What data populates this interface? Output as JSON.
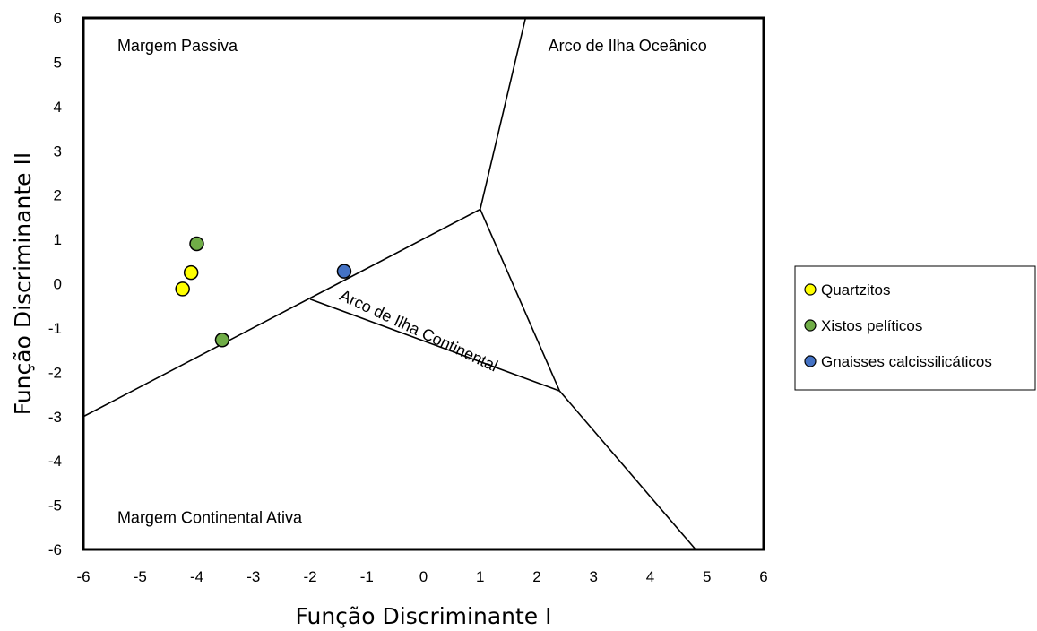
{
  "chart_data": {
    "type": "scatter",
    "title": "",
    "xlabel": "Função Discriminante I",
    "ylabel": "Função Discriminante II",
    "xlim": [
      -6,
      6
    ],
    "ylim": [
      -6,
      6
    ],
    "xticks": [
      "-6",
      "-5",
      "-4",
      "-3",
      "-2",
      "-1",
      "0",
      "1",
      "2",
      "3",
      "4",
      "5",
      "6"
    ],
    "yticks": [
      "6",
      "5",
      "4",
      "3",
      "2",
      "1",
      "0",
      "-1",
      "-2",
      "-3",
      "-4",
      "-5",
      "-6"
    ],
    "grid": false,
    "legend_position": "right",
    "series": [
      {
        "name": "Quartzitos",
        "color": "#ffff00",
        "points": [
          [
            -4.1,
            0.25
          ],
          [
            -4.25,
            -0.12
          ]
        ]
      },
      {
        "name": "Xistos pelíticos",
        "color": "#70ad47",
        "points": [
          [
            -4.0,
            0.9
          ],
          [
            -3.55,
            -1.27
          ]
        ]
      },
      {
        "name": "Gnaisses calcissilicáticos",
        "color": "#4472c4",
        "points": [
          [
            -1.4,
            0.28
          ]
        ]
      }
    ],
    "boundary_lines": [
      [
        [
          -6,
          -3.0
        ],
        [
          1.0,
          1.68
        ]
      ],
      [
        [
          1.0,
          1.68
        ],
        [
          1.8,
          6.0
        ]
      ],
      [
        [
          1.0,
          1.68
        ],
        [
          2.4,
          -2.42
        ]
      ],
      [
        [
          2.4,
          -2.42
        ],
        [
          4.8,
          -6.0
        ]
      ],
      [
        [
          -2.0,
          -0.35
        ],
        [
          2.4,
          -2.42
        ]
      ]
    ],
    "regions": [
      {
        "label": "Margem Passiva",
        "x": -5.4,
        "y": 5.25
      },
      {
        "label": "Arco de Ilha Oceânico",
        "x": 2.2,
        "y": 5.25
      },
      {
        "label": "Margem Continental Ativa",
        "x": -5.4,
        "y": -5.4
      },
      {
        "label": "Arco de Ilha Continental",
        "x": -1.5,
        "y": -0.35,
        "rotation": 25
      }
    ]
  }
}
